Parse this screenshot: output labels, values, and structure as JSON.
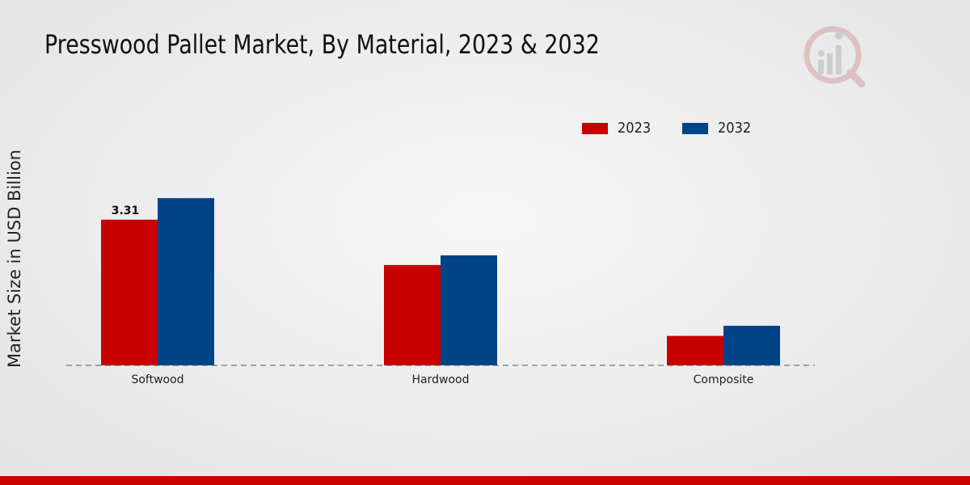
{
  "chart_data": {
    "type": "bar",
    "title": "Presswood Pallet Market, By Material, 2023 & 2032",
    "xlabel": "",
    "ylabel": "Market Size in USD Billion",
    "categories": [
      "Softwood",
      "Hardwood",
      "Composite"
    ],
    "series": [
      {
        "name": "2023",
        "color": "#c80000",
        "values": [
          3.31,
          2.28,
          0.67
        ]
      },
      {
        "name": "2032",
        "color": "#004488",
        "values": [
          3.8,
          2.5,
          0.9
        ]
      }
    ],
    "data_labels": [
      {
        "series": "2023",
        "category": "Softwood",
        "text": "3.31"
      }
    ],
    "ylim": [
      0,
      7.2
    ],
    "grid": false,
    "legend_position": "top-right"
  },
  "branding": {
    "logo_icon": "market-research-logo-icon",
    "accent_color": "#cc0000"
  }
}
